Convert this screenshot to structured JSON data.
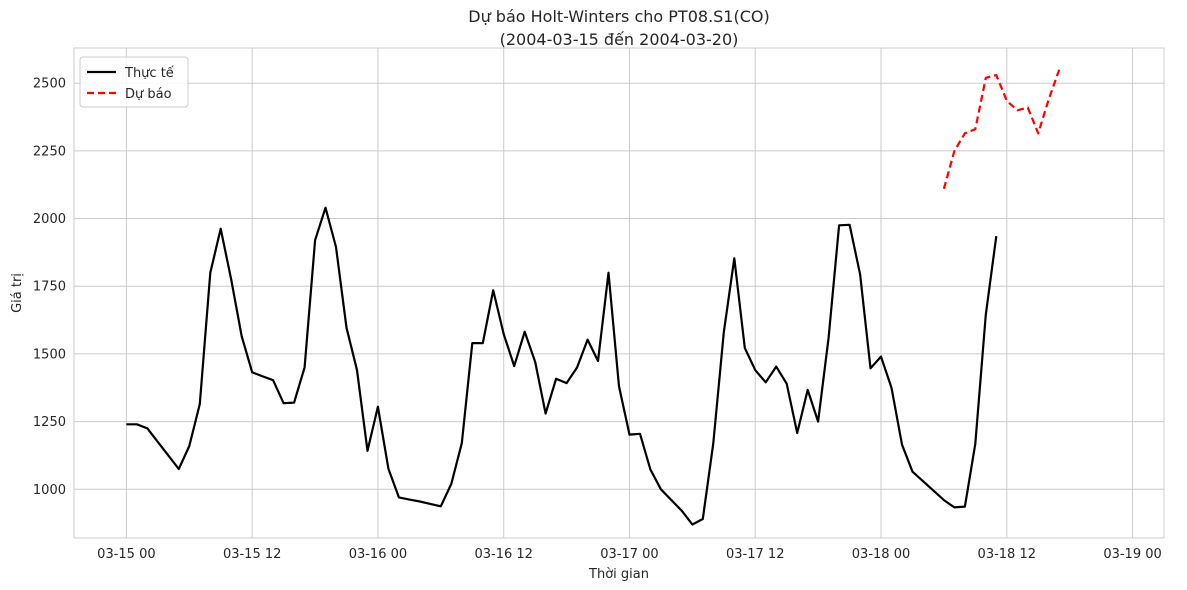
{
  "chart_data": {
    "type": "line",
    "title": "Dự báo Holt-Winters cho PT08.S1(CO)",
    "subtitle": "(2004-03-15 đến 2004-03-20)",
    "xlabel": "Thời gian",
    "ylabel": "Giá trị",
    "xlim": [
      "2004-03-14 19:00",
      "2004-03-19 03:00"
    ],
    "ylim": [
      820,
      2630
    ],
    "grid": true,
    "legend_position": "top-left",
    "x_ticks": [
      "03-15 00",
      "03-15 12",
      "03-16 00",
      "03-16 12",
      "03-17 00",
      "03-17 12",
      "03-18 00",
      "03-18 12",
      "03-19 00"
    ],
    "y_ticks": [
      1000,
      1250,
      1500,
      1750,
      2000,
      2250,
      2500
    ],
    "series": [
      {
        "name": "Thực tế",
        "color": "#000000",
        "style": "solid",
        "start": "2004-03-15 00:00",
        "interval_hours": 1,
        "values": [
          1240,
          1240,
          1225,
          1175,
          1125,
          1075,
          1160,
          1315,
          1800,
          1962,
          1775,
          1565,
          1432,
          1417,
          1403,
          1318,
          1320,
          1450,
          1920,
          2040,
          1895,
          1597,
          1440,
          1142,
          1305,
          1076,
          970,
          962,
          955,
          946,
          937,
          1020,
          1170,
          1540,
          1540,
          1735,
          1573,
          1455,
          1582,
          1470,
          1280,
          1408,
          1392,
          1450,
          1553,
          1474,
          1800,
          1380,
          1202,
          1205,
          1073,
          1000,
          960,
          920,
          870,
          890,
          1170,
          1580,
          1853,
          1522,
          1440,
          1395,
          1453,
          1390,
          1208,
          1367,
          1250,
          1560,
          1975,
          1977,
          1794,
          1447,
          1490,
          1375,
          1165,
          1065,
          1030,
          995,
          960,
          933,
          936,
          1168,
          1645,
          1935
        ]
      },
      {
        "name": "Dự báo",
        "color": "#ff0000",
        "style": "dashed",
        "start": "2004-03-18 06:00",
        "interval_hours": 1,
        "values": [
          2110,
          2250,
          2315,
          2330,
          2520,
          2530,
          2435,
          2400,
          2410,
          2315,
          2440,
          2550
        ]
      }
    ]
  }
}
